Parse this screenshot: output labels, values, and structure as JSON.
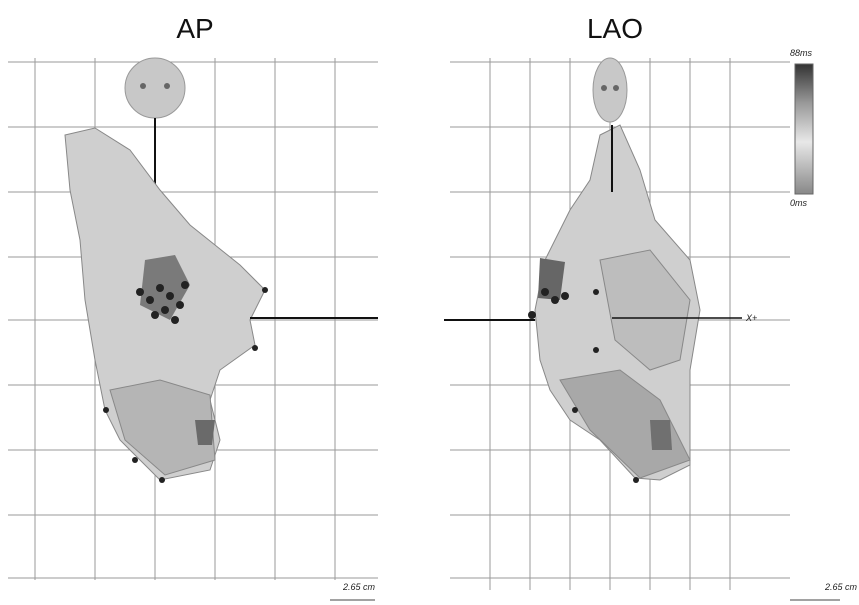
{
  "panels": [
    {
      "title": "AP",
      "scale": "2.65 cm"
    },
    {
      "title": "LAO",
      "scale": "2.65 cm",
      "axis_label": "X+",
      "colorbar": {
        "max": "88ms",
        "min": "0ms"
      }
    }
  ]
}
